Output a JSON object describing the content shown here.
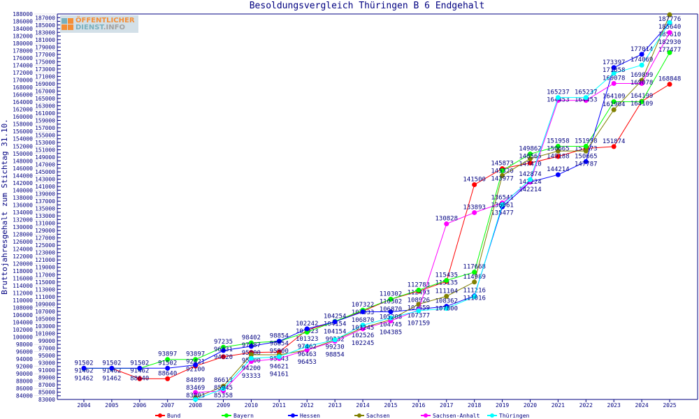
{
  "chart_data": {
    "type": "line",
    "title": "Besoldungsvergleich Thüringen B 6 Endgehalt",
    "ylabel": "Bruttojahresgehalt zum Stichtag 31.10.",
    "xlabel": "",
    "ylim": [
      83000,
      188000
    ],
    "ytick_step": 1000,
    "grid": false,
    "legend_position": "bottom",
    "x": [
      2004,
      2005,
      2006,
      2007,
      2008,
      2009,
      2010,
      2011,
      2012,
      2013,
      2014,
      2015,
      2016,
      2017,
      2018,
      2019,
      2020,
      2021,
      2022,
      2023,
      2024,
      2025
    ],
    "series": [
      {
        "name": "Bund",
        "color": "#ff0000",
        "values": [
          91462,
          91462,
          88640,
          88640,
          92100,
          94620,
          95800,
          95900,
          101923,
          104154,
          107033,
          110302,
          112493,
          115135,
          141500,
          145873,
          147410,
          149188,
          151373,
          151874,
          164199,
          168848
        ]
      },
      {
        "name": "Bayern",
        "color": "#00ff00",
        "values": [
          91462,
          91462,
          91462,
          93897,
          93897,
          97235,
          98402,
          98854,
          101323,
          104254,
          107322,
          110302,
          112783,
          115435,
          117668,
          145320,
          149862,
          151958,
          151958,
          164109,
          164109,
          177477
        ]
      },
      {
        "name": "Hessen",
        "color": "#0000ff",
        "values": [
          91502,
          91502,
          91502,
          91502,
          92421,
          96331,
          97487,
          98854,
          102242,
          104154,
          106870,
          106870,
          107559,
          108362,
          111216,
          135477,
          142214,
          144214,
          147787,
          173397,
          177014,
          185610
        ]
      },
      {
        "name": "Sachsen",
        "color": "#808000",
        "values": [
          null,
          null,
          null,
          null,
          83469,
          86613,
          95200,
          95143,
          96453,
          99232,
          102526,
          104745,
          108926,
          111104,
          114989,
          143977,
          148565,
          150665,
          150665,
          161904,
          169899,
          187776
        ]
      },
      {
        "name": "Sachsen-Anhalt",
        "color": "#ff00ff",
        "values": [
          null,
          null,
          null,
          null,
          84899,
          85358,
          93333,
          94161,
          96463,
          98854,
          102245,
          104385,
          107377,
          130828,
          133893,
          136541,
          142224,
          164453,
          164453,
          169078,
          169078,
          182930
        ]
      },
      {
        "name": "Thüringen",
        "color": "#00ffff",
        "values": [
          null,
          null,
          null,
          null,
          83003,
          85945,
          94200,
          94621,
          97462,
          99230,
          103245,
          105208,
          107159,
          107800,
          111016,
          136061,
          142874,
          165237,
          165237,
          171858,
          174069,
          185640
        ]
      }
    ]
  },
  "logo": {
    "line1": "ÖFFENTLICHER",
    "line2a": "DIENST",
    "line2b": ".INFO"
  },
  "colors": {
    "axis": "#000080"
  }
}
